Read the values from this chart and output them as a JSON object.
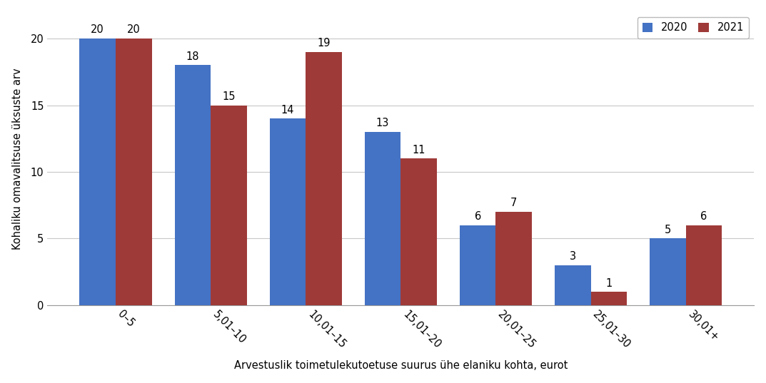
{
  "categories": [
    "0–5",
    "5,01–10",
    "10,01–15",
    "15,01–20",
    "20,01–25",
    "25,01–30",
    "30,01+"
  ],
  "values_2020": [
    20,
    18,
    14,
    13,
    6,
    3,
    5
  ],
  "values_2021": [
    20,
    15,
    19,
    11,
    7,
    1,
    6
  ],
  "color_2020": "#4472C4",
  "color_2021": "#9E3A38",
  "ylabel": "Kohaliku omavalitsuse üksuste arv",
  "xlabel": "Arvestuslik toimetulekutoetuse suurus ühe elaniku kohta, eurot",
  "legend_2020": "2020",
  "legend_2021": "2021",
  "ylim": [
    0,
    22
  ],
  "yticks": [
    0,
    5,
    10,
    15,
    20
  ],
  "bar_width": 0.38,
  "label_fontsize": 10.5,
  "axis_fontsize": 10.5,
  "background_color": "#ffffff",
  "grid_color": "#c8c8c8",
  "xtick_rotation": 315,
  "plot_bgcolor": "#f2f2f2"
}
